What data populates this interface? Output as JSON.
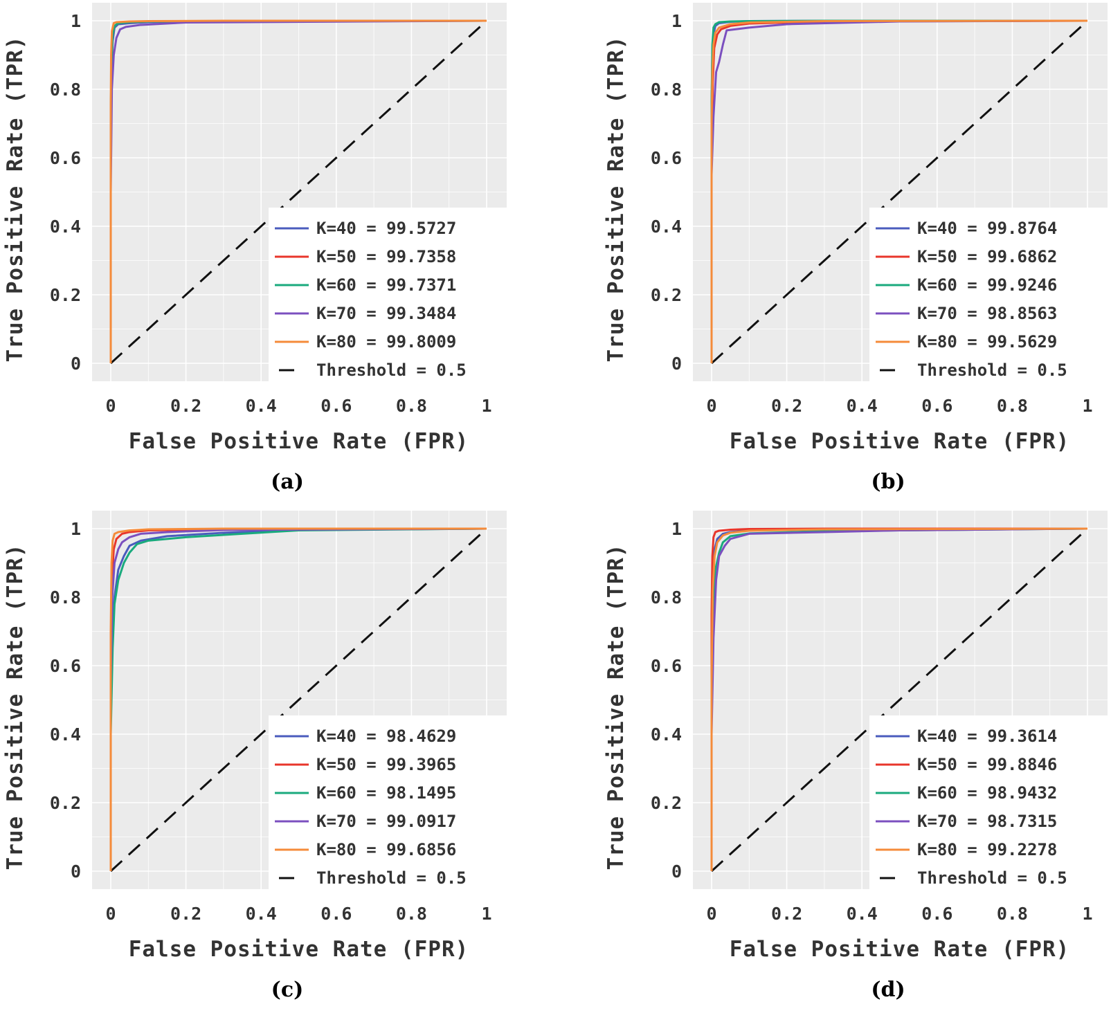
{
  "figure": {
    "captions": [
      "(a)",
      "(b)",
      "(c)",
      "(d)"
    ]
  },
  "colors": {
    "K=40": "#4a5bbd",
    "K=50": "#e8362b",
    "K=60": "#1aaa7d",
    "K=70": "#7b4fbf",
    "K=80": "#f58b3a",
    "threshold": "#111111",
    "panel_background": "#ebebeb",
    "grid": "#ffffff"
  },
  "chart_data": [
    {
      "type": "line",
      "panel": "a",
      "xlabel": "False Positive Rate (FPR)",
      "ylabel": "True Positive Rate (TPR)",
      "xlim": [
        0,
        1
      ],
      "ylim": [
        0,
        1
      ],
      "xticks": [
        "0",
        "0.2",
        "0.4",
        "0.6",
        "0.8",
        "1"
      ],
      "yticks": [
        "0",
        "0.2",
        "0.4",
        "0.6",
        "0.8",
        "1"
      ],
      "legend_position": "bottom-right",
      "series": [
        {
          "name": "K=40",
          "label": "K=40 = 99.5727",
          "x": [
            0,
            0,
            0.002,
            0.005,
            0.01,
            0.02,
            0.05,
            0.1,
            0.3,
            1
          ],
          "y": [
            0,
            0.6,
            0.85,
            0.94,
            0.98,
            0.99,
            0.993,
            0.996,
            0.999,
            1
          ]
        },
        {
          "name": "K=50",
          "label": "K=50 = 99.7358",
          "x": [
            0,
            0,
            0.002,
            0.005,
            0.01,
            0.02,
            0.05,
            0.1,
            0.3,
            1
          ],
          "y": [
            0,
            0.7,
            0.88,
            0.96,
            0.985,
            0.993,
            0.996,
            0.998,
            0.999,
            1
          ]
        },
        {
          "name": "K=60",
          "label": "K=60 = 99.7371",
          "x": [
            0,
            0,
            0.002,
            0.005,
            0.01,
            0.02,
            0.05,
            0.1,
            0.3,
            1
          ],
          "y": [
            0,
            0.72,
            0.88,
            0.96,
            0.985,
            0.993,
            0.996,
            0.998,
            0.999,
            1
          ]
        },
        {
          "name": "K=70",
          "label": "K=70 = 99.3484",
          "x": [
            0,
            0,
            0.003,
            0.008,
            0.015,
            0.025,
            0.04,
            0.08,
            0.2,
            1
          ],
          "y": [
            0,
            0.5,
            0.8,
            0.9,
            0.95,
            0.975,
            0.982,
            0.988,
            0.995,
            1
          ]
        },
        {
          "name": "K=80",
          "label": "K=80 = 99.8009",
          "x": [
            0,
            0,
            0.001,
            0.003,
            0.008,
            0.015,
            0.05,
            0.1,
            0.3,
            1
          ],
          "y": [
            0,
            0.75,
            0.9,
            0.97,
            0.993,
            0.996,
            0.998,
            0.999,
            1,
            1
          ]
        }
      ],
      "threshold": {
        "label": "Threshold = 0.5",
        "x": [
          0,
          1
        ],
        "y": [
          0,
          1
        ]
      }
    },
    {
      "type": "line",
      "panel": "b",
      "xlabel": "False Positive Rate (FPR)",
      "ylabel": "True Positive Rate (TPR)",
      "xlim": [
        0,
        1
      ],
      "ylim": [
        0,
        1
      ],
      "xticks": [
        "0",
        "0.2",
        "0.4",
        "0.6",
        "0.8",
        "1"
      ],
      "yticks": [
        "0",
        "0.2",
        "0.4",
        "0.6",
        "0.8",
        "1"
      ],
      "legend_position": "bottom-right",
      "series": [
        {
          "name": "K=40",
          "label": "K=40 = 99.8764",
          "x": [
            0,
            0,
            0.002,
            0.005,
            0.01,
            0.02,
            0.05,
            0.1,
            0.3,
            1
          ],
          "y": [
            0,
            0.75,
            0.9,
            0.96,
            0.985,
            0.993,
            0.997,
            0.999,
            1,
            1
          ]
        },
        {
          "name": "K=50",
          "label": "K=50 = 99.6862",
          "x": [
            0,
            0,
            0.003,
            0.007,
            0.015,
            0.025,
            0.05,
            0.1,
            0.3,
            1
          ],
          "y": [
            0,
            0.6,
            0.82,
            0.92,
            0.96,
            0.975,
            0.985,
            0.992,
            0.998,
            1
          ]
        },
        {
          "name": "K=60",
          "label": "K=60 = 99.9246",
          "x": [
            0,
            0,
            0.002,
            0.005,
            0.01,
            0.02,
            0.05,
            0.1,
            0.3,
            1
          ],
          "y": [
            0,
            0.76,
            0.93,
            0.98,
            0.99,
            0.996,
            0.998,
            0.999,
            1,
            1
          ]
        },
        {
          "name": "K=70",
          "label": "K=70 = 98.8563",
          "x": [
            0,
            0,
            0.005,
            0.012,
            0.02,
            0.03,
            0.04,
            0.1,
            0.2,
            0.5,
            1
          ],
          "y": [
            0,
            0.55,
            0.72,
            0.85,
            0.88,
            0.93,
            0.972,
            0.98,
            0.99,
            0.998,
            1
          ]
        },
        {
          "name": "K=80",
          "label": "K=80 = 99.5629",
          "x": [
            0,
            0,
            0.002,
            0.005,
            0.01,
            0.02,
            0.05,
            0.1,
            0.3,
            1
          ],
          "y": [
            0,
            0.7,
            0.85,
            0.93,
            0.965,
            0.98,
            0.99,
            0.995,
            0.999,
            1
          ]
        }
      ],
      "threshold": {
        "label": "Threshold = 0.5",
        "x": [
          0,
          1
        ],
        "y": [
          0,
          1
        ]
      }
    },
    {
      "type": "line",
      "panel": "c",
      "xlabel": "False Positive Rate (FPR)",
      "ylabel": "True Positive Rate (TPR)",
      "xlim": [
        0,
        1
      ],
      "ylim": [
        0,
        1
      ],
      "xticks": [
        "0",
        "0.2",
        "0.4",
        "0.6",
        "0.8",
        "1"
      ],
      "yticks": [
        "0",
        "0.2",
        "0.4",
        "0.6",
        "0.8",
        "1"
      ],
      "legend_position": "bottom-right",
      "series": [
        {
          "name": "K=40",
          "label": "K=40 = 98.4629",
          "x": [
            0,
            0,
            0.005,
            0.01,
            0.02,
            0.035,
            0.05,
            0.08,
            0.15,
            0.3,
            0.5,
            1
          ],
          "y": [
            0,
            0.45,
            0.7,
            0.8,
            0.88,
            0.92,
            0.95,
            0.965,
            0.978,
            0.988,
            0.996,
            1
          ]
        },
        {
          "name": "K=50",
          "label": "K=50 = 99.3965",
          "x": [
            0,
            0,
            0.003,
            0.008,
            0.015,
            0.03,
            0.05,
            0.1,
            0.3,
            1
          ],
          "y": [
            0,
            0.6,
            0.85,
            0.94,
            0.97,
            0.985,
            0.99,
            0.995,
            0.998,
            1
          ]
        },
        {
          "name": "K=60",
          "label": "K=60 = 98.1495",
          "x": [
            0,
            0,
            0.005,
            0.01,
            0.02,
            0.035,
            0.05,
            0.07,
            0.1,
            0.2,
            0.35,
            0.5,
            1
          ],
          "y": [
            0,
            0.4,
            0.65,
            0.78,
            0.85,
            0.9,
            0.93,
            0.955,
            0.965,
            0.975,
            0.985,
            0.995,
            1
          ]
        },
        {
          "name": "K=70",
          "label": "K=70 = 99.0917",
          "x": [
            0,
            0,
            0.004,
            0.01,
            0.02,
            0.03,
            0.05,
            0.08,
            0.15,
            0.3,
            1
          ],
          "y": [
            0,
            0.55,
            0.8,
            0.9,
            0.94,
            0.96,
            0.975,
            0.985,
            0.99,
            0.996,
            1
          ]
        },
        {
          "name": "K=80",
          "label": "K=80 = 99.6856",
          "x": [
            0,
            0,
            0.002,
            0.005,
            0.01,
            0.02,
            0.05,
            0.1,
            0.3,
            1
          ],
          "y": [
            0,
            0.7,
            0.9,
            0.965,
            0.985,
            0.99,
            0.995,
            0.998,
            1,
            1
          ]
        }
      ],
      "threshold": {
        "label": "Threshold = 0.5",
        "x": [
          0,
          1
        ],
        "y": [
          0,
          1
        ]
      }
    },
    {
      "type": "line",
      "panel": "d",
      "xlabel": "False Positive Rate (FPR)",
      "ylabel": "True Positive Rate (TPR)",
      "xlim": [
        0,
        1
      ],
      "ylim": [
        0,
        1
      ],
      "xticks": [
        "0",
        "0.2",
        "0.4",
        "0.6",
        "0.8",
        "1"
      ],
      "yticks": [
        "0",
        "0.2",
        "0.4",
        "0.6",
        "0.8",
        "1"
      ],
      "legend_position": "bottom-right",
      "series": [
        {
          "name": "K=40",
          "label": "K=40 = 99.3614",
          "x": [
            0,
            0,
            0.003,
            0.008,
            0.015,
            0.03,
            0.05,
            0.1,
            0.3,
            1
          ],
          "y": [
            0,
            0.6,
            0.85,
            0.94,
            0.97,
            0.985,
            0.99,
            0.995,
            0.998,
            1
          ]
        },
        {
          "name": "K=50",
          "label": "K=50 = 99.8846",
          "x": [
            0,
            0,
            0.002,
            0.005,
            0.01,
            0.02,
            0.05,
            0.1,
            0.3,
            1
          ],
          "y": [
            0,
            0.75,
            0.92,
            0.975,
            0.99,
            0.994,
            0.997,
            0.999,
            1,
            1
          ]
        },
        {
          "name": "K=60",
          "label": "K=60 = 98.9432",
          "x": [
            0,
            0,
            0.004,
            0.01,
            0.02,
            0.03,
            0.05,
            0.1,
            0.3,
            1
          ],
          "y": [
            0,
            0.5,
            0.78,
            0.88,
            0.93,
            0.96,
            0.978,
            0.986,
            0.993,
            1
          ]
        },
        {
          "name": "K=70",
          "label": "K=70 = 98.7315",
          "x": [
            0,
            0,
            0.005,
            0.012,
            0.02,
            0.035,
            0.05,
            0.1,
            0.3,
            0.5,
            1
          ],
          "y": [
            0,
            0.4,
            0.68,
            0.85,
            0.92,
            0.95,
            0.97,
            0.985,
            0.99,
            0.995,
            1
          ]
        },
        {
          "name": "K=80",
          "label": "K=80 = 99.2278",
          "x": [
            0,
            0,
            0.003,
            0.008,
            0.015,
            0.03,
            0.05,
            0.1,
            0.3,
            1
          ],
          "y": [
            0,
            0.55,
            0.82,
            0.92,
            0.96,
            0.98,
            0.988,
            0.994,
            0.998,
            1
          ]
        }
      ],
      "threshold": {
        "label": "Threshold = 0.5",
        "x": [
          0,
          1
        ],
        "y": [
          0,
          1
        ]
      }
    }
  ]
}
